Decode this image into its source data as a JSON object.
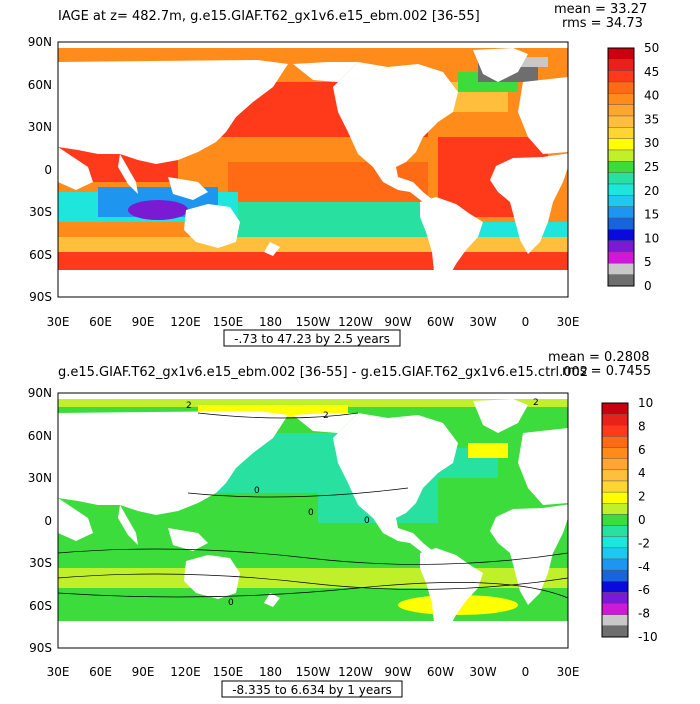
{
  "chart_data": [
    {
      "type": "heatmap",
      "title": "IAGE at z= 482.7m, g.e15.GIAF.T62_gx1v6.e15_ebm.002 [36-55]",
      "stats": {
        "mean": "mean = 33.27",
        "rms": "rms = 34.73"
      },
      "range_label": "-.73 to 47.23 by 2.5 years",
      "x_ticks": [
        "30E",
        "60E",
        "90E",
        "120E",
        "150E",
        "180",
        "150W",
        "120W",
        "90W",
        "60W",
        "30W",
        "0",
        "30E"
      ],
      "y_ticks": [
        "90N",
        "60N",
        "30N",
        "0",
        "30S",
        "60S",
        "90S"
      ],
      "colorbar": {
        "labels": [
          "50",
          "45",
          "40",
          "35",
          "30",
          "25",
          "20",
          "15",
          "10",
          "5",
          "0"
        ],
        "colors": [
          "#c8000f",
          "#e8221a",
          "#ff3a1a",
          "#ff6a14",
          "#ff8c1a",
          "#ffa533",
          "#ffbe3c",
          "#ffd531",
          "#ffff00",
          "#c0f02a",
          "#3cdc3c",
          "#28e0a0",
          "#1ee6dc",
          "#20c8f0",
          "#1e96f0",
          "#1864dc",
          "#0a0adc",
          "#7a1ad2",
          "#ce1ad6",
          "#c8c8c8",
          "#6e6e6e"
        ]
      },
      "xlim": [
        30,
        390
      ],
      "ylim": [
        -90,
        90
      ],
      "grid": false
    },
    {
      "type": "heatmap",
      "title": "g.e15.GIAF.T62_gx1v6.e15_ebm.002 [36-55] - g.e15.GIAF.T62_gx1v6.e15.ctrl.002",
      "stats": {
        "mean": "mean = 0.2808",
        "rms": "rms = 0.7455"
      },
      "range_label": "-8.335 to 6.634 by 1 years",
      "x_ticks": [
        "30E",
        "60E",
        "90E",
        "120E",
        "150E",
        "180",
        "150W",
        "120W",
        "90W",
        "60W",
        "30W",
        "0",
        "30E"
      ],
      "y_ticks": [
        "90N",
        "60N",
        "30N",
        "0",
        "30S",
        "60S",
        "90S"
      ],
      "contour_labels": [
        "2",
        "2",
        "2",
        "0",
        "0",
        "0",
        "0"
      ],
      "colorbar": {
        "labels": [
          "10",
          "8",
          "6",
          "4",
          "2",
          "0",
          "-2",
          "-4",
          "-6",
          "-8",
          "-10"
        ],
        "colors": [
          "#c8000f",
          "#e8221a",
          "#ff3a1a",
          "#ff6a14",
          "#ff8c1a",
          "#ffa533",
          "#ffbe3c",
          "#ffd531",
          "#ffff00",
          "#c0f02a",
          "#3cdc3c",
          "#28e0a0",
          "#1ee6dc",
          "#20c8f0",
          "#1e96f0",
          "#1864dc",
          "#0a0adc",
          "#7a1ad2",
          "#ce1ad6",
          "#c8c8c8",
          "#6e6e6e"
        ]
      },
      "xlim": [
        30,
        390
      ],
      "ylim": [
        -90,
        90
      ],
      "grid": false
    }
  ]
}
